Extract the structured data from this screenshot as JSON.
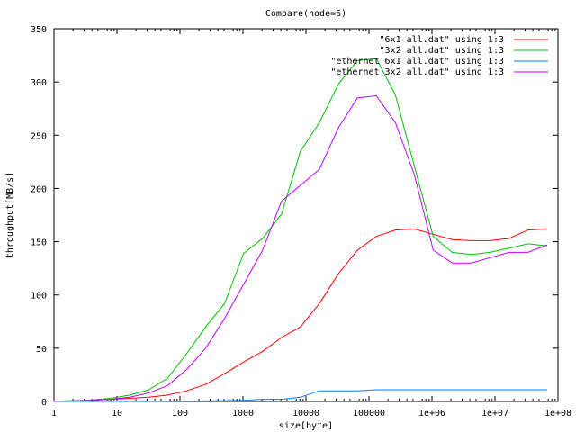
{
  "chart_data": {
    "type": "line",
    "title": "Compare(node=6)",
    "xlabel": "size[byte]",
    "ylabel": "throughput[MB/s]",
    "x_scale": "log",
    "xlim": [
      1,
      100000000
    ],
    "ylim": [
      0,
      350
    ],
    "x_ticks": [
      {
        "value": 1,
        "label": "1"
      },
      {
        "value": 10,
        "label": "10"
      },
      {
        "value": 100,
        "label": "100"
      },
      {
        "value": 1000,
        "label": "1000"
      },
      {
        "value": 10000,
        "label": "10000"
      },
      {
        "value": 100000,
        "label": "100000"
      },
      {
        "value": 1000000,
        "label": "1e+06"
      },
      {
        "value": 10000000,
        "label": "1e+07"
      },
      {
        "value": 100000000,
        "label": "1e+08"
      }
    ],
    "y_ticks": [
      0,
      50,
      100,
      150,
      200,
      250,
      300,
      350
    ],
    "legend_position": "top-right",
    "grid": false,
    "series": [
      {
        "name": "\"6x1 all.dat\" using 1:3",
        "color": "#ff0000",
        "points": [
          [
            1,
            0.2
          ],
          [
            2,
            0.5
          ],
          [
            4,
            1
          ],
          [
            8,
            2
          ],
          [
            16,
            3
          ],
          [
            32,
            4
          ],
          [
            64,
            6
          ],
          [
            128,
            10
          ],
          [
            256,
            16
          ],
          [
            512,
            26
          ],
          [
            1024,
            37
          ],
          [
            2048,
            47
          ],
          [
            4096,
            60
          ],
          [
            8192,
            70
          ],
          [
            16384,
            92
          ],
          [
            32768,
            120
          ],
          [
            65536,
            142
          ],
          [
            131072,
            155
          ],
          [
            262144,
            161
          ],
          [
            524288,
            162
          ],
          [
            1048576,
            157
          ],
          [
            2097152,
            152
          ],
          [
            4194304,
            151
          ],
          [
            8388608,
            151
          ],
          [
            16777216,
            153
          ],
          [
            33554432,
            161
          ],
          [
            67108864,
            162
          ]
        ]
      },
      {
        "name": "\"3x2 all.dat\" using 1:3",
        "color": "#00c000",
        "points": [
          [
            1,
            0.3
          ],
          [
            2,
            0.8
          ],
          [
            4,
            1.5
          ],
          [
            8,
            3
          ],
          [
            16,
            6
          ],
          [
            32,
            11
          ],
          [
            64,
            22
          ],
          [
            128,
            45
          ],
          [
            256,
            70
          ],
          [
            512,
            92
          ],
          [
            1024,
            139
          ],
          [
            2048,
            153
          ],
          [
            4096,
            176
          ],
          [
            8192,
            235
          ],
          [
            16384,
            262
          ],
          [
            32768,
            298
          ],
          [
            65536,
            320
          ],
          [
            131072,
            322
          ],
          [
            262144,
            288
          ],
          [
            524288,
            221
          ],
          [
            1048576,
            155
          ],
          [
            2097152,
            140
          ],
          [
            4194304,
            138
          ],
          [
            8388608,
            140
          ],
          [
            16777216,
            144
          ],
          [
            33554432,
            148
          ],
          [
            67108864,
            146
          ]
        ]
      },
      {
        "name": "\"ethernet 6x1 all.dat\" using 1:3",
        "color": "#0080ff",
        "points": [
          [
            1,
            0
          ],
          [
            4,
            0
          ],
          [
            16,
            0
          ],
          [
            64,
            0.2
          ],
          [
            256,
            0.5
          ],
          [
            1024,
            1
          ],
          [
            2048,
            2
          ],
          [
            4096,
            2
          ],
          [
            8192,
            4
          ],
          [
            16384,
            10
          ],
          [
            32768,
            10
          ],
          [
            65536,
            10
          ],
          [
            131072,
            11
          ],
          [
            262144,
            11
          ],
          [
            524288,
            11
          ],
          [
            1048576,
            11
          ],
          [
            4194304,
            11
          ],
          [
            16777216,
            11
          ],
          [
            67108864,
            11
          ]
        ]
      },
      {
        "name": "\"ethernet 3x2 all.dat\" using 1:3",
        "color": "#c000ff",
        "points": [
          [
            1,
            0.2
          ],
          [
            2,
            0.5
          ],
          [
            4,
            1
          ],
          [
            8,
            2
          ],
          [
            16,
            4
          ],
          [
            32,
            8
          ],
          [
            64,
            15
          ],
          [
            128,
            30
          ],
          [
            256,
            50
          ],
          [
            512,
            78
          ],
          [
            1024,
            110
          ],
          [
            2048,
            142
          ],
          [
            4096,
            188
          ],
          [
            8192,
            203
          ],
          [
            16384,
            218
          ],
          [
            32768,
            257
          ],
          [
            65536,
            285
          ],
          [
            131072,
            287
          ],
          [
            262144,
            262
          ],
          [
            524288,
            213
          ],
          [
            1048576,
            142
          ],
          [
            2097152,
            130
          ],
          [
            4194304,
            130
          ],
          [
            8388608,
            135
          ],
          [
            16777216,
            140
          ],
          [
            33554432,
            140
          ],
          [
            67108864,
            147
          ]
        ]
      }
    ]
  }
}
